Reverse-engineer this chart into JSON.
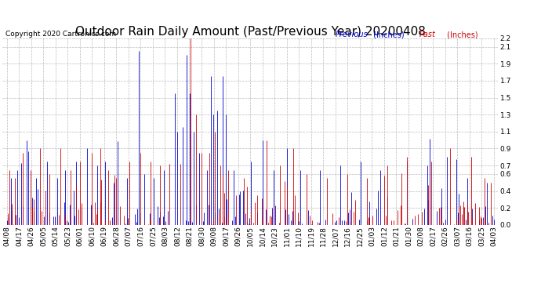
{
  "title": "Outdoor Rain Daily Amount (Past/Previous Year) 20200408",
  "copyright": "Copyright 2020 Cartronics.com",
  "legend_previous": "Previous",
  "legend_past": "Past",
  "legend_units": " (Inches)",
  "legend_previous_color": "#0000cc",
  "legend_past_color": "#cc0000",
  "background_color": "#ffffff",
  "grid_color": "#aaaaaa",
  "ylim": [
    0.0,
    2.2
  ],
  "yticks": [
    0.0,
    0.2,
    0.4,
    0.6,
    0.7,
    0.9,
    1.1,
    1.3,
    1.5,
    1.7,
    1.9,
    2.1,
    2.2
  ],
  "x_labels": [
    "04/08",
    "04/17",
    "04/26",
    "05/05",
    "05/14",
    "05/23",
    "06/01",
    "06/10",
    "06/19",
    "06/28",
    "07/07",
    "07/16",
    "07/25",
    "08/03",
    "08/12",
    "08/21",
    "08/30",
    "09/08",
    "09/17",
    "09/26",
    "10/05",
    "10/14",
    "10/23",
    "11/01",
    "11/10",
    "11/19",
    "11/28",
    "12/07",
    "12/16",
    "12/25",
    "01/03",
    "01/12",
    "01/21",
    "01/30",
    "02/08",
    "02/17",
    "02/26",
    "03/07",
    "03/16",
    "03/25",
    "04/03"
  ],
  "title_fontsize": 11,
  "axis_fontsize": 6.5,
  "copyright_fontsize": 6.5,
  "line_width": 0.6,
  "n_days": 366
}
